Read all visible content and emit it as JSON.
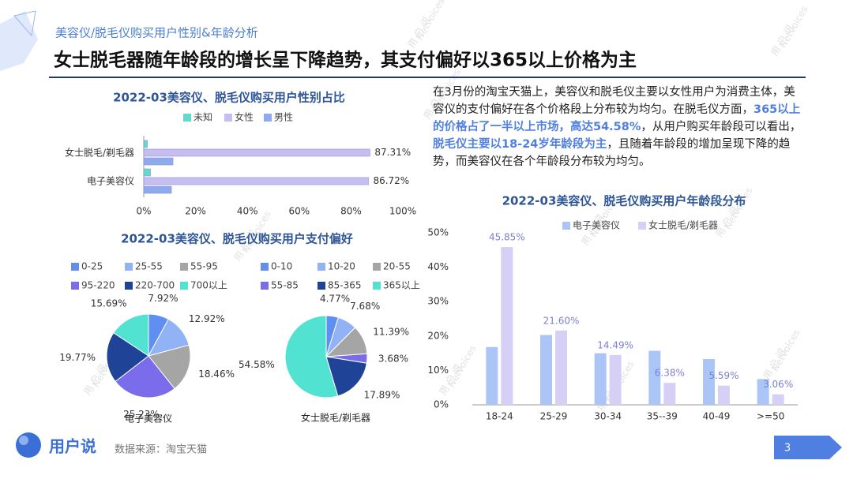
{
  "header": {
    "subtitle": "美容仪/脱毛仪购买用户性别&年龄分析",
    "title": "女士脱毛器随年龄段的增长呈下降趋势，其支付偏好以365以上价格为主"
  },
  "paragraph": [
    "在3月份的淘宝天猫上，美容仪和脱毛仪主要以女性用户为消费主体，美容仪的支付偏好在各个价格段上分布较为均匀。在脱毛仪方面，",
    "365以上的价格占了一半以上市场，高达54.58%",
    "，从用户购买年龄段可以看出，",
    "脱毛仪主要以18-24岁年龄段为主",
    "，且随着年龄段的增加呈现下降的趋势，而美容仪在各个年龄段分布较为均匀。"
  ],
  "watermark": [
    "用 户 说",
    "Netvoices"
  ],
  "footer": {
    "logo": "用户说",
    "source": "数据来源：淘宝天猫",
    "page": "3"
  },
  "chart_data": [
    {
      "type": "bar",
      "orientation": "horizontal",
      "title": "2022-03美容仪、脱毛仪购买用户性别占比",
      "categories": [
        "女士脱毛/剃毛器",
        "电子美容仪"
      ],
      "series": [
        {
          "name": "未知",
          "color": "#63d9cb",
          "values": [
            1.4,
            2.6
          ]
        },
        {
          "name": "女性",
          "color": "#c6bdf0",
          "values": [
            87.31,
            86.72
          ],
          "value_labels": [
            "87.31%",
            "86.72%"
          ]
        },
        {
          "name": "男性",
          "color": "#8eabf0",
          "values": [
            11.29,
            10.68
          ]
        }
      ],
      "xlim": [
        0,
        100
      ],
      "xticks": [
        {
          "value": 0,
          "label": "0%"
        },
        {
          "value": 20,
          "label": "20%"
        },
        {
          "value": 40,
          "label": "40%"
        },
        {
          "value": 60,
          "label": "60%"
        },
        {
          "value": 80,
          "label": "80%"
        },
        {
          "value": 100,
          "label": "100%"
        }
      ]
    },
    {
      "type": "pie",
      "title": "2022-03美容仪、脱毛仪购买用户支付偏好",
      "label": "电子美容仪",
      "categories": [
        "0-25",
        "25-55",
        "55-95",
        "95-220",
        "220-700",
        "700以上"
      ],
      "values": [
        7.92,
        12.92,
        18.46,
        25.23,
        19.77,
        15.69
      ],
      "value_labels": [
        "7.92%",
        "12.92%",
        "18.46%",
        "25.23%",
        "19.77%",
        "15.69%"
      ],
      "colors": [
        "#5f8ff0",
        "#91b3f6",
        "#a5a5a5",
        "#7b6cec",
        "#1f4396",
        "#52e2d2"
      ]
    },
    {
      "type": "pie",
      "label": "女士脱毛/剃毛器",
      "categories": [
        "0-10",
        "10-20",
        "20-55",
        "55-85",
        "85-365",
        "365以上"
      ],
      "values": [
        4.77,
        7.68,
        11.39,
        3.68,
        17.89,
        54.58
      ],
      "value_labels": [
        "4.77%",
        "7.68%",
        "11.39%",
        "3.68%",
        "17.89%",
        "54.58%"
      ],
      "colors": [
        "#5f8ff0",
        "#91b3f6",
        "#a5a5a5",
        "#7b6cec",
        "#1f4396",
        "#52e2d2"
      ]
    },
    {
      "type": "bar",
      "orientation": "vertical",
      "title": "2022-03美容仪、脱毛仪购买用户年龄段分布",
      "categories": [
        "18-24",
        "25-29",
        "30-34",
        "35--39",
        "40-49",
        ">=50"
      ],
      "series": [
        {
          "name": "电子美容仪",
          "color": "#abc5f6",
          "values": [
            16.8,
            20.3,
            15.0,
            15.7,
            13.3,
            7.5
          ]
        },
        {
          "name": "女士脱毛/剃毛器",
          "color": "#d6cff6",
          "values": [
            45.85,
            21.6,
            14.49,
            6.38,
            5.59,
            3.06
          ],
          "value_labels": [
            "45.85%",
            "21.60%",
            "14.49%",
            "6.38%",
            "5.59%",
            "3.06%"
          ]
        }
      ],
      "ylim": [
        0,
        50
      ],
      "yticks": [
        {
          "value": 0,
          "label": "0%"
        },
        {
          "value": 10,
          "label": "10%"
        },
        {
          "value": 20,
          "label": "20%"
        },
        {
          "value": 30,
          "label": "30%"
        },
        {
          "value": 40,
          "label": "40%"
        },
        {
          "value": 50,
          "label": "50%"
        }
      ]
    }
  ]
}
